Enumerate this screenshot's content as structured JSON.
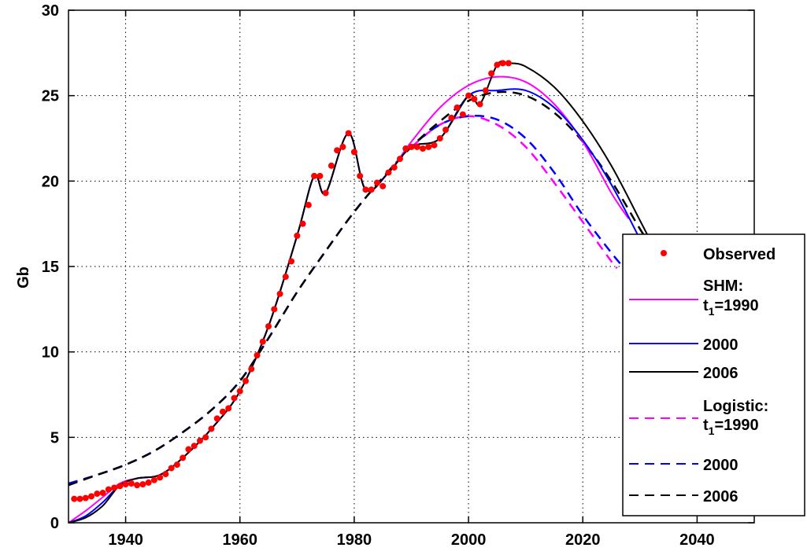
{
  "chart_data": {
    "type": "line",
    "title": "",
    "xlabel": "",
    "ylabel": "Gb",
    "xlim": [
      1930,
      2050
    ],
    "ylim": [
      0,
      30
    ],
    "xticks": [
      1940,
      1960,
      1980,
      2000,
      2020,
      2040
    ],
    "yticks": [
      0,
      5,
      10,
      15,
      20,
      25,
      30
    ],
    "grid": true,
    "legend_position": "bottom-right",
    "observed": {
      "name": "Observed",
      "color": "#ff0000",
      "points": [
        [
          1931,
          1.4
        ],
        [
          1932,
          1.4
        ],
        [
          1933,
          1.45
        ],
        [
          1934,
          1.55
        ],
        [
          1935,
          1.7
        ],
        [
          1936,
          1.75
        ],
        [
          1937,
          1.95
        ],
        [
          1938,
          2.05
        ],
        [
          1939,
          2.15
        ],
        [
          1940,
          2.25
        ],
        [
          1941,
          2.3
        ],
        [
          1942,
          2.2
        ],
        [
          1943,
          2.25
        ],
        [
          1944,
          2.35
        ],
        [
          1945,
          2.5
        ],
        [
          1946,
          2.65
        ],
        [
          1947,
          2.85
        ],
        [
          1948,
          3.2
        ],
        [
          1949,
          3.4
        ],
        [
          1950,
          3.8
        ],
        [
          1951,
          4.3
        ],
        [
          1952,
          4.5
        ],
        [
          1953,
          4.8
        ],
        [
          1954,
          5.0
        ],
        [
          1955,
          5.5
        ],
        [
          1956,
          6.1
        ],
        [
          1957,
          6.5
        ],
        [
          1958,
          6.7
        ],
        [
          1959,
          7.3
        ],
        [
          1960,
          7.7
        ],
        [
          1961,
          8.3
        ],
        [
          1962,
          9.0
        ],
        [
          1963,
          9.8
        ],
        [
          1964,
          10.6
        ],
        [
          1965,
          11.5
        ],
        [
          1966,
          12.5
        ],
        [
          1967,
          13.4
        ],
        [
          1968,
          14.4
        ],
        [
          1969,
          15.3
        ],
        [
          1970,
          16.8
        ],
        [
          1971,
          17.5
        ],
        [
          1972,
          18.6
        ],
        [
          1973,
          20.3
        ],
        [
          1974,
          20.3
        ],
        [
          1975,
          19.3
        ],
        [
          1976,
          20.9
        ],
        [
          1977,
          21.8
        ],
        [
          1978,
          22.0
        ],
        [
          1979,
          22.8
        ],
        [
          1980,
          21.7
        ],
        [
          1981,
          20.3
        ],
        [
          1982,
          19.5
        ],
        [
          1983,
          19.5
        ],
        [
          1984,
          19.9
        ],
        [
          1985,
          19.7
        ],
        [
          1986,
          20.5
        ],
        [
          1987,
          20.8
        ],
        [
          1988,
          21.3
        ],
        [
          1989,
          21.9
        ],
        [
          1990,
          22.0
        ],
        [
          1991,
          22.0
        ],
        [
          1992,
          21.9
        ],
        [
          1993,
          22.0
        ],
        [
          1994,
          22.1
        ],
        [
          1995,
          22.5
        ],
        [
          1996,
          23.0
        ],
        [
          1997,
          23.7
        ],
        [
          1998,
          24.3
        ],
        [
          1999,
          23.9
        ],
        [
          2000,
          25.0
        ],
        [
          2001,
          24.8
        ],
        [
          2002,
          24.5
        ],
        [
          2003,
          25.3
        ],
        [
          2004,
          26.3
        ],
        [
          2005,
          26.8
        ],
        [
          2006,
          26.9
        ],
        [
          2007,
          26.9
        ]
      ]
    },
    "series": [
      {
        "name": "SHM: t1=1990",
        "color": "#ff00ff",
        "dash": "solid",
        "points": [
          [
            1930,
            0.0
          ],
          [
            1933,
            0.7
          ],
          [
            1936,
            1.5
          ],
          [
            1939,
            2.3
          ],
          [
            1942,
            2.6
          ],
          [
            1946,
            2.8
          ],
          [
            1950,
            3.8
          ],
          [
            1955,
            5.5
          ],
          [
            1960,
            7.7
          ],
          [
            1965,
            11.5
          ],
          [
            1970,
            16.8
          ],
          [
            1973,
            20.3
          ],
          [
            1975,
            19.3
          ],
          [
            1979,
            22.8
          ],
          [
            1982,
            19.5
          ],
          [
            1986,
            20.5
          ],
          [
            1990,
            22.3
          ],
          [
            1995,
            24.3
          ],
          [
            2000,
            25.6
          ],
          [
            2005,
            26.1
          ],
          [
            2010,
            25.8
          ],
          [
            2015,
            24.5
          ],
          [
            2020,
            22.3
          ],
          [
            2025,
            19.3
          ],
          [
            2028,
            17.8
          ]
        ]
      },
      {
        "name": "2000",
        "color": "#0000ff",
        "dash": "solid",
        "points": [
          [
            1930,
            0.0
          ],
          [
            1933,
            0.4
          ],
          [
            1936,
            1.2
          ],
          [
            1939,
            2.2
          ],
          [
            1942,
            2.6
          ],
          [
            1946,
            2.8
          ],
          [
            1950,
            3.8
          ],
          [
            1955,
            5.5
          ],
          [
            1960,
            7.7
          ],
          [
            1965,
            11.5
          ],
          [
            1970,
            16.8
          ],
          [
            1973,
            20.3
          ],
          [
            1975,
            19.3
          ],
          [
            1979,
            22.8
          ],
          [
            1982,
            19.5
          ],
          [
            1986,
            20.5
          ],
          [
            1990,
            22.0
          ],
          [
            1995,
            22.5
          ],
          [
            2000,
            25.0
          ],
          [
            2005,
            25.3
          ],
          [
            2010,
            25.3
          ],
          [
            2015,
            24.3
          ],
          [
            2020,
            22.4
          ],
          [
            2025,
            19.8
          ],
          [
            2030,
            16.6
          ]
        ]
      },
      {
        "name": "2006",
        "color": "#000000",
        "dash": "solid",
        "points": [
          [
            1930,
            0.0
          ],
          [
            1933,
            0.3
          ],
          [
            1936,
            1.0
          ],
          [
            1939,
            2.2
          ],
          [
            1942,
            2.6
          ],
          [
            1946,
            2.8
          ],
          [
            1950,
            3.8
          ],
          [
            1955,
            5.5
          ],
          [
            1960,
            7.7
          ],
          [
            1965,
            11.5
          ],
          [
            1970,
            16.8
          ],
          [
            1973,
            20.3
          ],
          [
            1975,
            19.3
          ],
          [
            1979,
            22.8
          ],
          [
            1982,
            19.5
          ],
          [
            1986,
            20.5
          ],
          [
            1990,
            22.0
          ],
          [
            1995,
            22.5
          ],
          [
            2000,
            25.0
          ],
          [
            2002,
            24.5
          ],
          [
            2005,
            26.8
          ],
          [
            2007,
            26.9
          ],
          [
            2010,
            26.7
          ],
          [
            2015,
            25.5
          ],
          [
            2020,
            23.5
          ],
          [
            2025,
            20.9
          ],
          [
            2030,
            17.7
          ],
          [
            2032,
            16.4
          ]
        ]
      },
      {
        "name": "Logistic: t1=1990",
        "color": "#ff00ff",
        "dash": "dashed",
        "points": [
          [
            1990,
            22.0
          ],
          [
            1995,
            23.3
          ],
          [
            2000,
            23.8
          ],
          [
            2005,
            23.3
          ],
          [
            2010,
            22.0
          ],
          [
            2015,
            19.9
          ],
          [
            2020,
            17.6
          ],
          [
            2025,
            15.3
          ],
          [
            2026,
            14.9
          ]
        ]
      },
      {
        "name": "2000",
        "color": "#0000ff",
        "dash": "dashed",
        "points": [
          [
            1930,
            2.3
          ],
          [
            1935,
            2.8
          ],
          [
            1940,
            3.4
          ],
          [
            1945,
            4.2
          ],
          [
            1950,
            5.3
          ],
          [
            1955,
            6.6
          ],
          [
            1960,
            8.3
          ],
          [
            1965,
            10.8
          ],
          [
            1970,
            13.5
          ],
          [
            1975,
            15.9
          ],
          [
            1980,
            18.2
          ],
          [
            1985,
            20.2
          ],
          [
            1990,
            22.0
          ],
          [
            1995,
            23.3
          ],
          [
            2000,
            23.8
          ],
          [
            2005,
            23.6
          ],
          [
            2010,
            22.5
          ],
          [
            2015,
            20.5
          ],
          [
            2020,
            18.0
          ],
          [
            2025,
            15.8
          ],
          [
            2027,
            15.0
          ]
        ]
      },
      {
        "name": "2006",
        "color": "#000000",
        "dash": "dashed",
        "points": [
          [
            1930,
            2.2
          ],
          [
            1935,
            2.8
          ],
          [
            1940,
            3.4
          ],
          [
            1945,
            4.2
          ],
          [
            1950,
            5.3
          ],
          [
            1955,
            6.6
          ],
          [
            1960,
            8.3
          ],
          [
            1965,
            10.8
          ],
          [
            1970,
            13.5
          ],
          [
            1975,
            15.9
          ],
          [
            1980,
            18.2
          ],
          [
            1985,
            20.2
          ],
          [
            1990,
            22.0
          ],
          [
            1995,
            23.5
          ],
          [
            2000,
            24.7
          ],
          [
            2005,
            25.2
          ],
          [
            2010,
            25.0
          ],
          [
            2015,
            24.0
          ],
          [
            2020,
            22.3
          ],
          [
            2025,
            20.0
          ],
          [
            2030,
            17.2
          ],
          [
            2032,
            16.2
          ]
        ]
      }
    ],
    "legend": {
      "observed": "Observed",
      "shm_line1": "SHM:",
      "shm_t1": "t",
      "shm_sub": "1",
      "shm_year": "=1990",
      "shm_2000": "2000",
      "shm_2006": "2006",
      "log_line1": "Logistic:",
      "log_t1": "t",
      "log_sub": "1",
      "log_year": "=1990",
      "log_2000": "2000",
      "log_2006": "2006"
    }
  }
}
